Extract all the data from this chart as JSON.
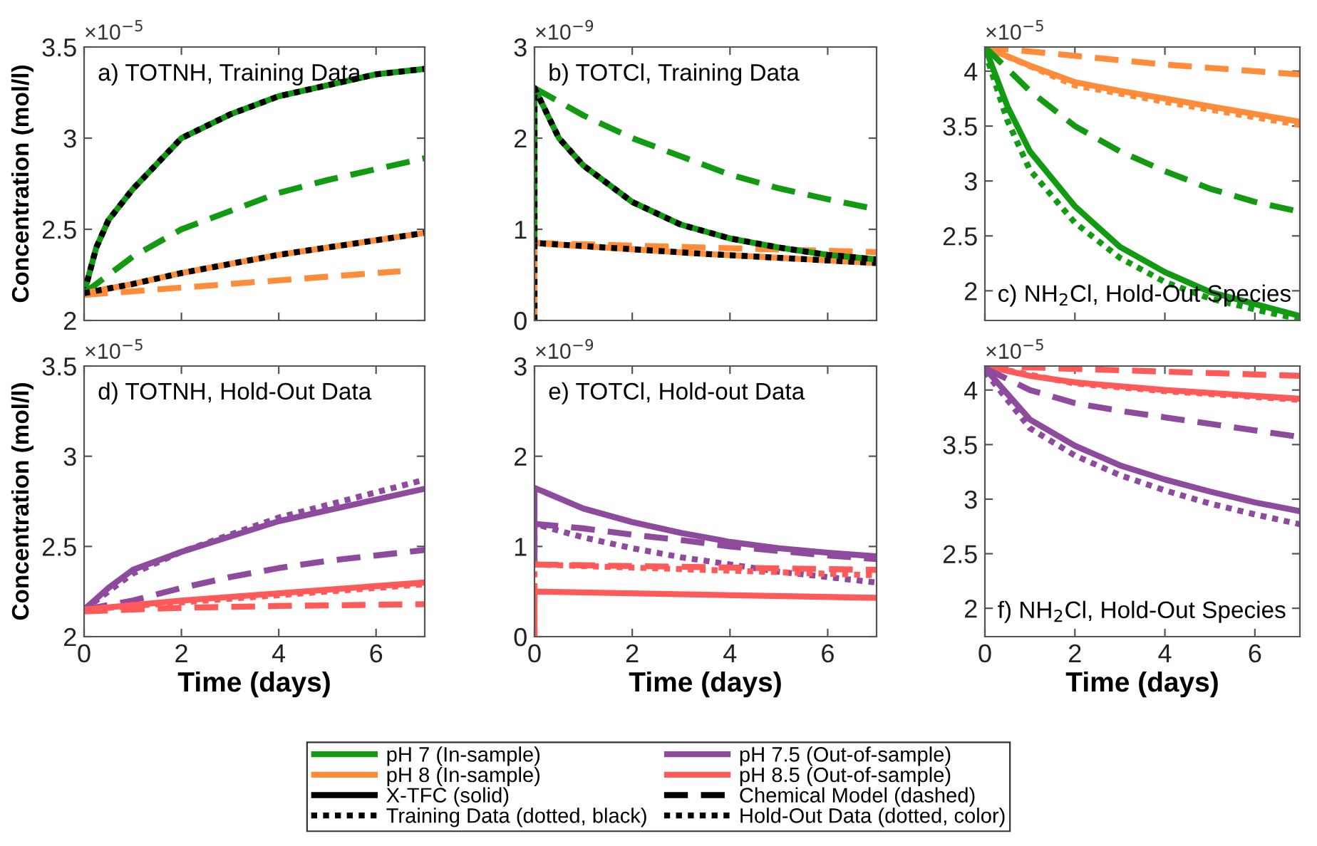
{
  "chart_data": [
    {
      "type": "line",
      "title": "a) TOTNH, Training Data",
      "ylabel": "Concentration (mol/l)",
      "annotations": [
        "×10$^{−5}$"
      ],
      "xlim": [
        0,
        7
      ],
      "xticks": [
        0,
        2,
        4,
        6
      ],
      "ylim": [
        2,
        3.5
      ],
      "yticks": [
        2,
        2.5,
        3,
        3.5
      ],
      "tick_labels": "y",
      "grid": false,
      "series": [
        {
          "color": "#139a13",
          "line_style": "solid",
          "x": [
            0,
            0.25,
            0.5,
            1,
            2,
            3,
            4,
            5,
            6,
            7
          ],
          "values": [
            2.15,
            2.4,
            2.55,
            2.72,
            3.0,
            3.13,
            3.23,
            3.29,
            3.35,
            3.38
          ]
        },
        {
          "color": "#000000",
          "line_style": "dotted",
          "x": [
            0,
            0.25,
            0.5,
            1,
            2,
            3,
            4,
            5,
            6,
            7
          ],
          "values": [
            2.15,
            2.4,
            2.55,
            2.72,
            3.0,
            3.13,
            3.23,
            3.29,
            3.35,
            3.38
          ]
        },
        {
          "color": "#139a13",
          "line_style": "dashed",
          "x": [
            0,
            1,
            2,
            3,
            4,
            5,
            6,
            7
          ],
          "values": [
            2.15,
            2.35,
            2.5,
            2.6,
            2.7,
            2.77,
            2.83,
            2.89
          ]
        },
        {
          "color": "#ff8c3a",
          "line_style": "dashed",
          "x": [
            0,
            2,
            4,
            6.5
          ],
          "values": [
            2.14,
            2.18,
            2.22,
            2.27
          ]
        },
        {
          "color": "#ff8c3a",
          "line_style": "solid",
          "x": [
            0,
            1,
            2,
            3,
            4,
            5,
            6,
            7
          ],
          "values": [
            2.15,
            2.2,
            2.26,
            2.31,
            2.36,
            2.4,
            2.44,
            2.48
          ]
        },
        {
          "color": "#000000",
          "line_style": "dotted",
          "x": [
            0,
            1,
            2,
            3,
            4,
            5,
            6,
            7
          ],
          "values": [
            2.15,
            2.2,
            2.26,
            2.31,
            2.36,
            2.4,
            2.44,
            2.48
          ]
        }
      ]
    },
    {
      "type": "line",
      "title": "b) TOTCl, Training Data",
      "annotations": [
        "×10$^{−9}$"
      ],
      "xlim": [
        0,
        7
      ],
      "xticks": [
        0,
        2,
        4,
        6
      ],
      "ylim": [
        0,
        3
      ],
      "yticks": [
        0,
        1,
        2,
        3
      ],
      "tick_labels": "y",
      "grid": false,
      "series": [
        {
          "color": "#139a13",
          "line_style": "dashed",
          "x": [
            0,
            1,
            2,
            3,
            4,
            5,
            6,
            7
          ],
          "values": [
            2.55,
            2.25,
            2.0,
            1.8,
            1.6,
            1.45,
            1.33,
            1.22
          ]
        },
        {
          "color": "#ff8c3a",
          "line_style": "dashed",
          "x": [
            0,
            3.5,
            7
          ],
          "values": [
            0.85,
            0.8,
            0.75
          ]
        },
        {
          "color": "#ff8c3a",
          "line_style": "solid",
          "x": [
            0,
            0,
            3.5,
            7
          ],
          "values": [
            0,
            0.85,
            0.73,
            0.63
          ]
        },
        {
          "color": "#000000",
          "line_style": "dotted",
          "x": [
            0,
            0,
            3.5,
            7
          ],
          "values": [
            0,
            0.85,
            0.73,
            0.63
          ]
        },
        {
          "color": "#139a13",
          "line_style": "solid",
          "x": [
            0,
            0,
            0.5,
            1,
            2,
            3,
            4,
            5,
            6,
            7
          ],
          "values": [
            0.85,
            2.55,
            2.0,
            1.7,
            1.3,
            1.05,
            0.9,
            0.8,
            0.72,
            0.67
          ]
        },
        {
          "color": "#000000",
          "line_style": "dotted",
          "x": [
            0,
            0,
            0.5,
            1,
            2,
            3,
            4,
            5,
            6,
            7
          ],
          "values": [
            0.85,
            2.55,
            2.0,
            1.7,
            1.3,
            1.05,
            0.9,
            0.8,
            0.72,
            0.67
          ]
        }
      ]
    },
    {
      "type": "line",
      "title": "c) NH$_{2}$Cl, Hold-Out Species",
      "annotations": [
        "×10$^{−5}$"
      ],
      "xlim": [
        0,
        7
      ],
      "xticks": [
        0,
        2,
        4,
        6
      ],
      "ylim": [
        1.73,
        4.22
      ],
      "yticks": [
        2,
        2.5,
        3,
        3.5,
        4
      ],
      "tick_labels": "y",
      "grid": false,
      "series": [
        {
          "color": "#ff8c3a",
          "line_style": "dashed",
          "x": [
            0,
            2,
            4,
            7
          ],
          "values": [
            4.22,
            4.14,
            4.06,
            3.97
          ]
        },
        {
          "color": "#ff8c3a",
          "line_style": "solid",
          "x": [
            0,
            1,
            2,
            3,
            4,
            5,
            6,
            7
          ],
          "values": [
            4.22,
            4.05,
            3.9,
            3.82,
            3.75,
            3.68,
            3.61,
            3.54
          ]
        },
        {
          "color": "#ff8c3a",
          "line_style": "dotted",
          "x": [
            0,
            2,
            4,
            7
          ],
          "values": [
            4.22,
            3.87,
            3.72,
            3.51
          ]
        },
        {
          "color": "#139a13",
          "line_style": "dashed",
          "x": [
            0,
            1,
            2,
            3,
            4,
            5,
            6,
            7
          ],
          "values": [
            4.22,
            3.82,
            3.5,
            3.27,
            3.09,
            2.93,
            2.81,
            2.72
          ]
        },
        {
          "color": "#139a13",
          "line_style": "solid",
          "x": [
            0,
            0.5,
            1,
            2,
            3,
            4,
            5,
            6,
            7
          ],
          "values": [
            4.22,
            3.68,
            3.27,
            2.77,
            2.4,
            2.17,
            1.99,
            1.88,
            1.77
          ]
        },
        {
          "color": "#139a13",
          "line_style": "dotted",
          "x": [
            0,
            0.5,
            1,
            2,
            3,
            4,
            5,
            6,
            7
          ],
          "values": [
            4.18,
            3.55,
            3.1,
            2.62,
            2.3,
            2.08,
            1.93,
            1.83,
            1.74
          ]
        }
      ]
    },
    {
      "type": "line",
      "title": "d) TOTNH, Hold-Out Data",
      "ylabel": "Concentration (mol/l)",
      "xlabel": "Time (days)",
      "annotations": [
        "×10$^{−5}$"
      ],
      "xlim": [
        0,
        7
      ],
      "xticks": [
        0,
        2,
        4,
        6
      ],
      "ylim": [
        2,
        3.5
      ],
      "yticks": [
        2,
        2.5,
        3,
        3.5
      ],
      "grid": false,
      "series": [
        {
          "color": "#8e4a9c",
          "line_style": "solid",
          "x": [
            0,
            0.5,
            1,
            2,
            4,
            6,
            7
          ],
          "values": [
            2.15,
            2.27,
            2.37,
            2.47,
            2.64,
            2.76,
            2.82
          ]
        },
        {
          "color": "#8e4a9c",
          "line_style": "dotted",
          "x": [
            0,
            1,
            2,
            4,
            6,
            7
          ],
          "values": [
            2.15,
            2.35,
            2.47,
            2.66,
            2.8,
            2.87
          ]
        },
        {
          "color": "#8e4a9c",
          "line_style": "dashed",
          "x": [
            0,
            1,
            2,
            3,
            4,
            5,
            6,
            7
          ],
          "values": [
            2.15,
            2.2,
            2.27,
            2.33,
            2.38,
            2.42,
            2.45,
            2.48
          ]
        },
        {
          "color": "#ff5a5a",
          "line_style": "dashed",
          "x": [
            0,
            2,
            4,
            7
          ],
          "values": [
            2.14,
            2.16,
            2.17,
            2.18
          ]
        },
        {
          "color": "#ff5a5a",
          "line_style": "solid",
          "x": [
            0,
            2,
            4,
            7
          ],
          "values": [
            2.15,
            2.2,
            2.24,
            2.3
          ]
        },
        {
          "color": "#ff5a5a",
          "line_style": "dotted",
          "x": [
            0,
            2,
            4,
            7
          ],
          "values": [
            2.15,
            2.19,
            2.23,
            2.29
          ]
        }
      ]
    },
    {
      "type": "line",
      "title": "e) TOTCl, Hold-out Data",
      "xlabel": "Time (days)",
      "annotations": [
        "×10$^{−9}$"
      ],
      "xlim": [
        0,
        7
      ],
      "xticks": [
        0,
        2,
        4,
        6
      ],
      "ylim": [
        0,
        3
      ],
      "yticks": [
        0,
        1,
        2,
        3
      ],
      "grid": false,
      "series": [
        {
          "color": "#8e4a9c",
          "line_style": "solid",
          "x": [
            0,
            0,
            1,
            2,
            3,
            4,
            5,
            6,
            7
          ],
          "values": [
            0.8,
            1.65,
            1.42,
            1.27,
            1.15,
            1.05,
            0.98,
            0.93,
            0.89
          ]
        },
        {
          "color": "#8e4a9c",
          "line_style": "dashed",
          "x": [
            0,
            1,
            2,
            3,
            4,
            5,
            6,
            7
          ],
          "values": [
            1.25,
            1.2,
            1.13,
            1.07,
            1.0,
            0.95,
            0.9,
            0.86
          ]
        },
        {
          "color": "#8e4a9c",
          "line_style": "dotted",
          "x": [
            0,
            0,
            1,
            2,
            3,
            4,
            5,
            6,
            7
          ],
          "values": [
            0.8,
            1.25,
            1.1,
            0.98,
            0.88,
            0.8,
            0.72,
            0.66,
            0.6
          ]
        },
        {
          "color": "#ff5a5a",
          "line_style": "solid",
          "x": [
            0,
            0,
            7
          ],
          "values": [
            0,
            0.5,
            0.43
          ]
        },
        {
          "color": "#ff5a5a",
          "line_style": "dashed",
          "x": [
            0,
            7
          ],
          "values": [
            0.8,
            0.74
          ]
        },
        {
          "color": "#ff5a5a",
          "line_style": "dotted",
          "x": [
            0,
            0,
            7
          ],
          "values": [
            0,
            0.8,
            0.68
          ]
        }
      ]
    },
    {
      "type": "line",
      "title": "f) NH$_{2}$Cl, Hold-Out Species",
      "xlabel": "Time (days)",
      "annotations": [
        "×10$^{−5}$"
      ],
      "xlim": [
        0,
        7
      ],
      "xticks": [
        0,
        2,
        4,
        6
      ],
      "ylim": [
        1.74,
        4.22
      ],
      "yticks": [
        2,
        2.5,
        3,
        3.5,
        4
      ],
      "grid": false,
      "series": [
        {
          "color": "#ff5a5a",
          "line_style": "dashed",
          "x": [
            0,
            7
          ],
          "values": [
            4.22,
            4.13
          ]
        },
        {
          "color": "#ff5a5a",
          "line_style": "solid",
          "x": [
            0,
            1,
            2,
            4,
            7
          ],
          "values": [
            4.22,
            4.13,
            4.07,
            4.0,
            3.92
          ]
        },
        {
          "color": "#ff5a5a",
          "line_style": "dotted",
          "x": [
            0,
            2,
            4,
            7
          ],
          "values": [
            4.22,
            4.06,
            3.99,
            3.91
          ]
        },
        {
          "color": "#8e4a9c",
          "line_style": "dashed",
          "x": [
            0,
            1,
            2,
            3,
            4,
            5,
            6,
            7
          ],
          "values": [
            4.2,
            4.0,
            3.88,
            3.81,
            3.75,
            3.69,
            3.63,
            3.57
          ]
        },
        {
          "color": "#8e4a9c",
          "line_style": "solid",
          "x": [
            0,
            1,
            2,
            3,
            4,
            5,
            6,
            7
          ],
          "values": [
            4.2,
            3.73,
            3.49,
            3.31,
            3.18,
            3.07,
            2.97,
            2.89
          ]
        },
        {
          "color": "#8e4a9c",
          "line_style": "dotted",
          "x": [
            0,
            1,
            2,
            3,
            4,
            5,
            6,
            7
          ],
          "values": [
            4.17,
            3.65,
            3.4,
            3.22,
            3.08,
            2.96,
            2.86,
            2.77
          ]
        }
      ]
    },
    {
      "type": "other",
      "legend": "bottom",
      "series": [
        {
          "name": "pH 7 (In-sample)",
          "color": "#139a13",
          "line_style": "solid"
        },
        {
          "name": "pH 7.5 (Out-of-sample)",
          "color": "#8e4a9c",
          "line_style": "solid"
        },
        {
          "name": "pH 8 (In-sample)",
          "color": "#ff8c3a",
          "line_style": "solid"
        },
        {
          "name": "pH 8.5 (Out-of-sample)",
          "color": "#ff5a5a",
          "line_style": "solid"
        },
        {
          "name": "X-TFC (solid)",
          "color": "#000000",
          "line_style": "solid"
        },
        {
          "name": "Chemical Model (dashed)",
          "color": "#000000",
          "line_style": "dashed"
        },
        {
          "name": "Training Data (dotted, black)",
          "color": "#000000",
          "line_style": "dotted"
        },
        {
          "name": "Hold-Out Data (dotted, color)",
          "color": "#000000",
          "line_style": "dotted"
        }
      ]
    }
  ]
}
